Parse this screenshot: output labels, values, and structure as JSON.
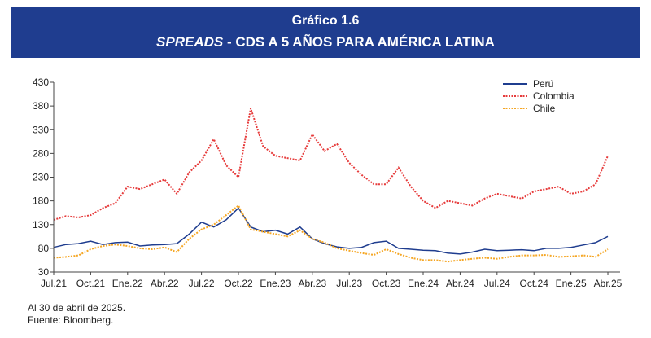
{
  "header": {
    "line1": "Gráfico 1.6",
    "line2_italic": "SPREADS",
    "line2_rest": " - CDS A 5 AÑOS PARA AMÉRICA LATINA",
    "background": "#1f3d8f"
  },
  "notes": {
    "date_note": "Al 30 de abril de 2025.",
    "source": "Fuente: Bloomberg."
  },
  "chart_data": {
    "type": "line",
    "title": "SPREADS - CDS A 5 AÑOS PARA AMÉRICA LATINA",
    "xlabel": "",
    "ylabel": "",
    "ylim": [
      30,
      430
    ],
    "yticks": [
      30,
      80,
      130,
      180,
      230,
      280,
      330,
      380,
      430
    ],
    "xticks": [
      "Jul.21",
      "Oct.21",
      "Ene.22",
      "Abr.22",
      "Jul.22",
      "Oct.22",
      "Ene.23",
      "Abr.23",
      "Jul.23",
      "Oct.23",
      "Ene.24",
      "Abr.24",
      "Jul.24",
      "Oct.24",
      "Ene.25",
      "Abr.25"
    ],
    "x": [
      "Jul.21",
      "Ago.21",
      "Sep.21",
      "Oct.21",
      "Nov.21",
      "Dic.21",
      "Ene.22",
      "Feb.22",
      "Mar.22",
      "Abr.22",
      "May.22",
      "Jun.22",
      "Jul.22",
      "Ago.22",
      "Sep.22",
      "Oct.22",
      "Nov.22",
      "Dic.22",
      "Ene.23",
      "Feb.23",
      "Mar.23",
      "Abr.23",
      "May.23",
      "Jun.23",
      "Jul.23",
      "Ago.23",
      "Sep.23",
      "Oct.23",
      "Nov.23",
      "Dic.23",
      "Ene.24",
      "Feb.24",
      "Mar.24",
      "Abr.24",
      "May.24",
      "Jun.24",
      "Jul.24",
      "Ago.24",
      "Sep.24",
      "Oct.24",
      "Nov.24",
      "Dic.24",
      "Ene.25",
      "Feb.25",
      "Mar.25",
      "Abr.25"
    ],
    "legend_position": "top-right",
    "grid": false,
    "series": [
      {
        "name": "Perú",
        "color": "#1f3d8f",
        "style": "solid",
        "values": [
          82,
          88,
          90,
          95,
          88,
          92,
          93,
          85,
          87,
          88,
          90,
          110,
          135,
          125,
          140,
          165,
          125,
          115,
          118,
          110,
          125,
          100,
          90,
          83,
          80,
          82,
          92,
          95,
          80,
          78,
          76,
          75,
          70,
          68,
          72,
          78,
          75,
          76,
          77,
          75,
          80,
          80,
          82,
          87,
          92,
          105
        ]
      },
      {
        "name": "Colombia",
        "color": "#e63b3b",
        "style": "dotted",
        "values": [
          140,
          148,
          145,
          150,
          165,
          175,
          210,
          205,
          215,
          225,
          195,
          240,
          265,
          310,
          255,
          230,
          375,
          295,
          275,
          270,
          265,
          320,
          285,
          300,
          260,
          235,
          215,
          215,
          250,
          210,
          180,
          165,
          180,
          175,
          170,
          185,
          195,
          190,
          185,
          200,
          205,
          210,
          195,
          200,
          215,
          275
        ]
      },
      {
        "name": "Chile",
        "color": "#f5a623",
        "style": "dotted",
        "values": [
          60,
          62,
          65,
          78,
          85,
          88,
          85,
          80,
          78,
          82,
          72,
          100,
          120,
          130,
          150,
          170,
          120,
          115,
          110,
          105,
          118,
          100,
          92,
          80,
          75,
          70,
          66,
          78,
          68,
          60,
          55,
          55,
          52,
          55,
          58,
          60,
          58,
          62,
          65,
          65,
          66,
          62,
          63,
          65,
          62,
          78
        ]
      }
    ]
  }
}
